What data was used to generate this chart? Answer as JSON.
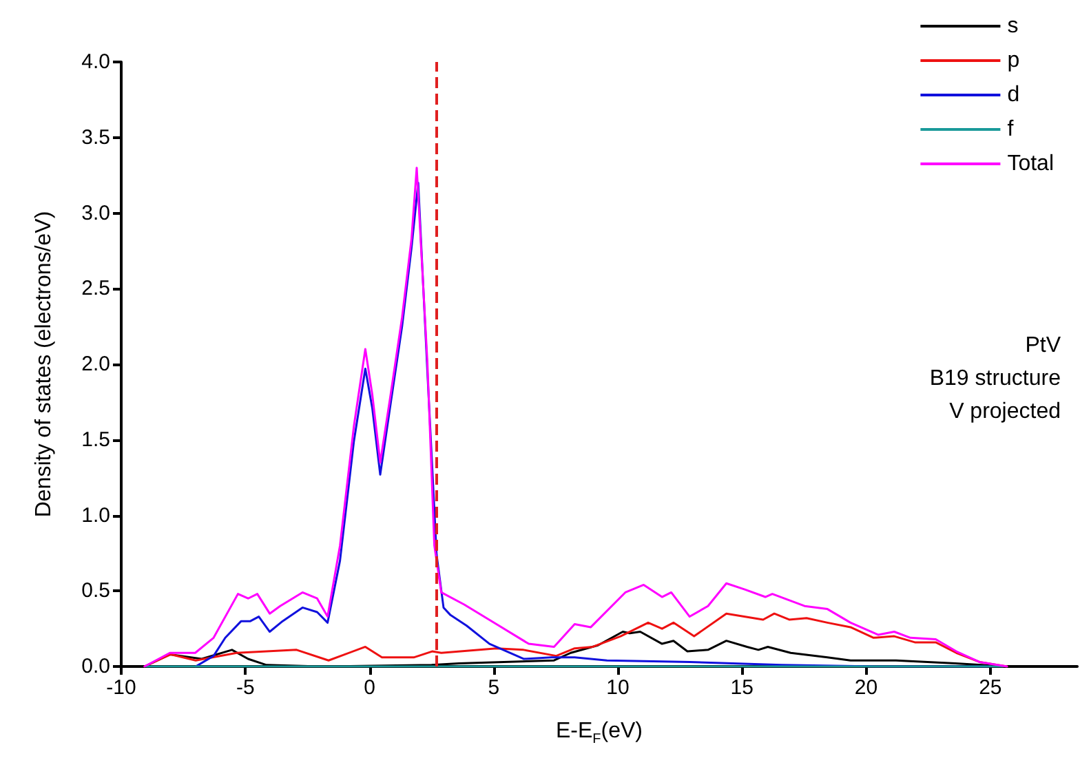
{
  "chart_data": {
    "type": "line",
    "xlabel": "E-E$_{F}$(eV)",
    "ylabel": "Density of states (electrons/eV)",
    "xlim": [
      -10,
      28.5
    ],
    "xticks": [
      -10,
      -5,
      0,
      5,
      10,
      15,
      20,
      25
    ],
    "ylim": [
      0,
      4.0
    ],
    "yticks": [
      {
        "value": 0,
        "label": "0.0"
      },
      0.5,
      {
        "value": 1,
        "label": "1.0"
      },
      1.5,
      {
        "value": 2,
        "label": "2.0"
      },
      2.5,
      {
        "value": 3,
        "label": "3.0"
      },
      3.5,
      {
        "value": 4,
        "label": "4.0"
      }
    ],
    "grid": false,
    "legend": "top right",
    "marker": "none",
    "line_style": "solid",
    "annotations": [
      "PtV",
      "B19 structure",
      "V projected"
    ],
    "ref_lines": [
      {
        "axis": "x",
        "value": 2.7,
        "color": "#e02020",
        "line_style": "dashed"
      }
    ],
    "series": [
      {
        "name": "s",
        "color": "#000000",
        "x": [
          -9.06,
          -8.04,
          -6.76,
          -5.54,
          -4.89,
          -4.15,
          -2,
          2.5,
          3.6,
          7.43,
          8.1,
          9.2,
          10.2,
          10.48,
          10.9,
          11.78,
          12.24,
          12.8,
          13.63,
          14.37,
          15.2,
          15.66,
          16.04,
          16.96,
          18.44,
          19.37,
          21.2,
          23.6,
          25.67
        ],
        "values": [
          0,
          0.08,
          0.05,
          0.11,
          0.05,
          0.01,
          0,
          0.01,
          0.02,
          0.04,
          0.09,
          0.14,
          0.23,
          0.22,
          0.23,
          0.15,
          0.17,
          0.1,
          0.11,
          0.17,
          0.13,
          0.11,
          0.13,
          0.09,
          0.06,
          0.04,
          0.04,
          0.02,
          0
        ]
      },
      {
        "name": "p",
        "color": "#ee1111",
        "x": [
          -9.06,
          -8,
          -7,
          -5.35,
          -2.94,
          -1.65,
          -0.17,
          0.5,
          1.78,
          2.52,
          2.89,
          5.11,
          6.2,
          7.52,
          8.26,
          8.99,
          10.11,
          11.22,
          11.78,
          12.24,
          13.07,
          14.37,
          15.85,
          16.3,
          16.9,
          17.6,
          18.44,
          19.37,
          20.3,
          21.13,
          21.96,
          22.8,
          23.63,
          24.56,
          25.67
        ],
        "values": [
          0,
          0.08,
          0.04,
          0.09,
          0.11,
          0.04,
          0.13,
          0.06,
          0.06,
          0.1,
          0.09,
          0.12,
          0.11,
          0.07,
          0.12,
          0.13,
          0.2,
          0.29,
          0.25,
          0.29,
          0.2,
          0.35,
          0.31,
          0.35,
          0.31,
          0.32,
          0.29,
          0.26,
          0.19,
          0.2,
          0.16,
          0.16,
          0.09,
          0.03,
          0
        ]
      },
      {
        "name": "d",
        "color": "#1111dd",
        "x": [
          -7,
          -6.28,
          -5.81,
          -5.17,
          -4.8,
          -4.46,
          -4.02,
          -3.5,
          -2.7,
          -2.11,
          -1.69,
          -1.19,
          -0.63,
          -0.17,
          0.11,
          0.43,
          0.85,
          1.31,
          1.69,
          1.96,
          2.33,
          2.7,
          2.98,
          3.26,
          3.91,
          4.83,
          6.22,
          7.33,
          8.26,
          9.56,
          12.9,
          16.6,
          20.5,
          25
        ],
        "values": [
          0,
          0.07,
          0.19,
          0.3,
          0.3,
          0.33,
          0.23,
          0.3,
          0.39,
          0.36,
          0.29,
          0.7,
          1.49,
          1.97,
          1.71,
          1.27,
          1.74,
          2.25,
          2.77,
          3.2,
          1.95,
          0.74,
          0.39,
          0.34,
          0.27,
          0.15,
          0.05,
          0.06,
          0.06,
          0.04,
          0.03,
          0.01,
          0,
          0
        ]
      },
      {
        "name": "f",
        "color": "#1a9a9a",
        "x": [
          -9,
          25.5
        ],
        "values": [
          0,
          0
        ]
      },
      {
        "name": "Total",
        "color": "#ff00ff",
        "x": [
          -9.06,
          -8.04,
          -7.02,
          -6.28,
          -5.3,
          -4.89,
          -4.52,
          -4.02,
          -3.6,
          -2.7,
          -2.11,
          -1.69,
          -1.19,
          -0.63,
          -0.17,
          0.11,
          0.43,
          0.85,
          1.31,
          1.69,
          1.9,
          2.33,
          2.61,
          2.89,
          3.81,
          5.11,
          6.41,
          7.43,
          8.26,
          8.91,
          10.3,
          11.04,
          11.78,
          12.15,
          12.89,
          13.63,
          14.37,
          15.11,
          15.94,
          16.22,
          17.52,
          18.44,
          19.37,
          20.48,
          21.13,
          21.78,
          22.8,
          23.63,
          24.56,
          25.67
        ],
        "values": [
          0,
          0.09,
          0.09,
          0.19,
          0.48,
          0.45,
          0.48,
          0.35,
          0.4,
          0.49,
          0.45,
          0.33,
          0.8,
          1.59,
          2.1,
          1.8,
          1.35,
          1.8,
          2.31,
          2.83,
          3.3,
          2.01,
          0.8,
          0.49,
          0.41,
          0.28,
          0.15,
          0.13,
          0.28,
          0.26,
          0.49,
          0.54,
          0.46,
          0.49,
          0.33,
          0.4,
          0.55,
          0.51,
          0.46,
          0.48,
          0.4,
          0.38,
          0.29,
          0.21,
          0.23,
          0.19,
          0.18,
          0.1,
          0.03,
          0
        ]
      }
    ]
  }
}
